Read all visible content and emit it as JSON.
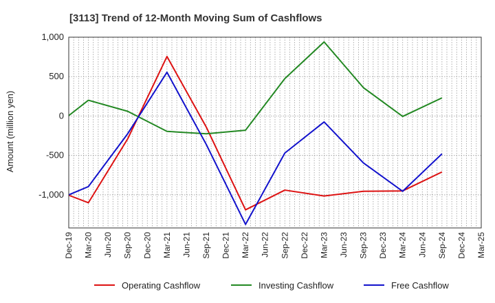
{
  "chart_data": {
    "type": "line",
    "title": "[3113]  Trend of 12-Month Moving Sum of Cashflows",
    "xlabel": "",
    "ylabel": "Amount (million yen)",
    "categories": [
      "Dec-19",
      "Mar-20",
      "Jun-20",
      "Sep-20",
      "Dec-20",
      "Mar-21",
      "Jun-21",
      "Sep-21",
      "Dec-21",
      "Mar-22",
      "Jun-22",
      "Sep-22",
      "Dec-22",
      "Mar-23",
      "Jun-23",
      "Sep-23",
      "Dec-23",
      "Mar-24",
      "Jun-24",
      "Sep-24",
      "Dec-24",
      "Mar-25"
    ],
    "ylim": [
      -1420,
      1000
    ],
    "yticks": [
      1000,
      500,
      0,
      -500,
      -1000
    ],
    "ytick_labels": [
      "1,000",
      "500",
      "0",
      "-500",
      "-1,000"
    ],
    "grid": true,
    "legend_position": "bottom",
    "series": [
      {
        "name": "Operating Cashflow",
        "color": "#dd1111",
        "values": [
          -1005,
          -1100,
          null,
          -290,
          null,
          755,
          null,
          -140,
          null,
          -1190,
          null,
          -940,
          null,
          -1015,
          null,
          -955,
          null,
          -950,
          null,
          -710,
          null,
          null
        ]
      },
      {
        "name": "Investing Cashflow",
        "color": "#228822",
        "values": [
          5,
          200,
          null,
          60,
          null,
          -195,
          null,
          -225,
          null,
          -180,
          null,
          475,
          null,
          940,
          null,
          360,
          null,
          -5,
          null,
          230,
          null,
          null
        ]
      },
      {
        "name": "Free Cashflow",
        "color": "#1111cc",
        "values": [
          -1000,
          -895,
          null,
          -225,
          null,
          555,
          null,
          -360,
          null,
          -1375,
          null,
          -470,
          null,
          -75,
          null,
          -595,
          null,
          -955,
          null,
          -480,
          null,
          null
        ]
      }
    ]
  }
}
